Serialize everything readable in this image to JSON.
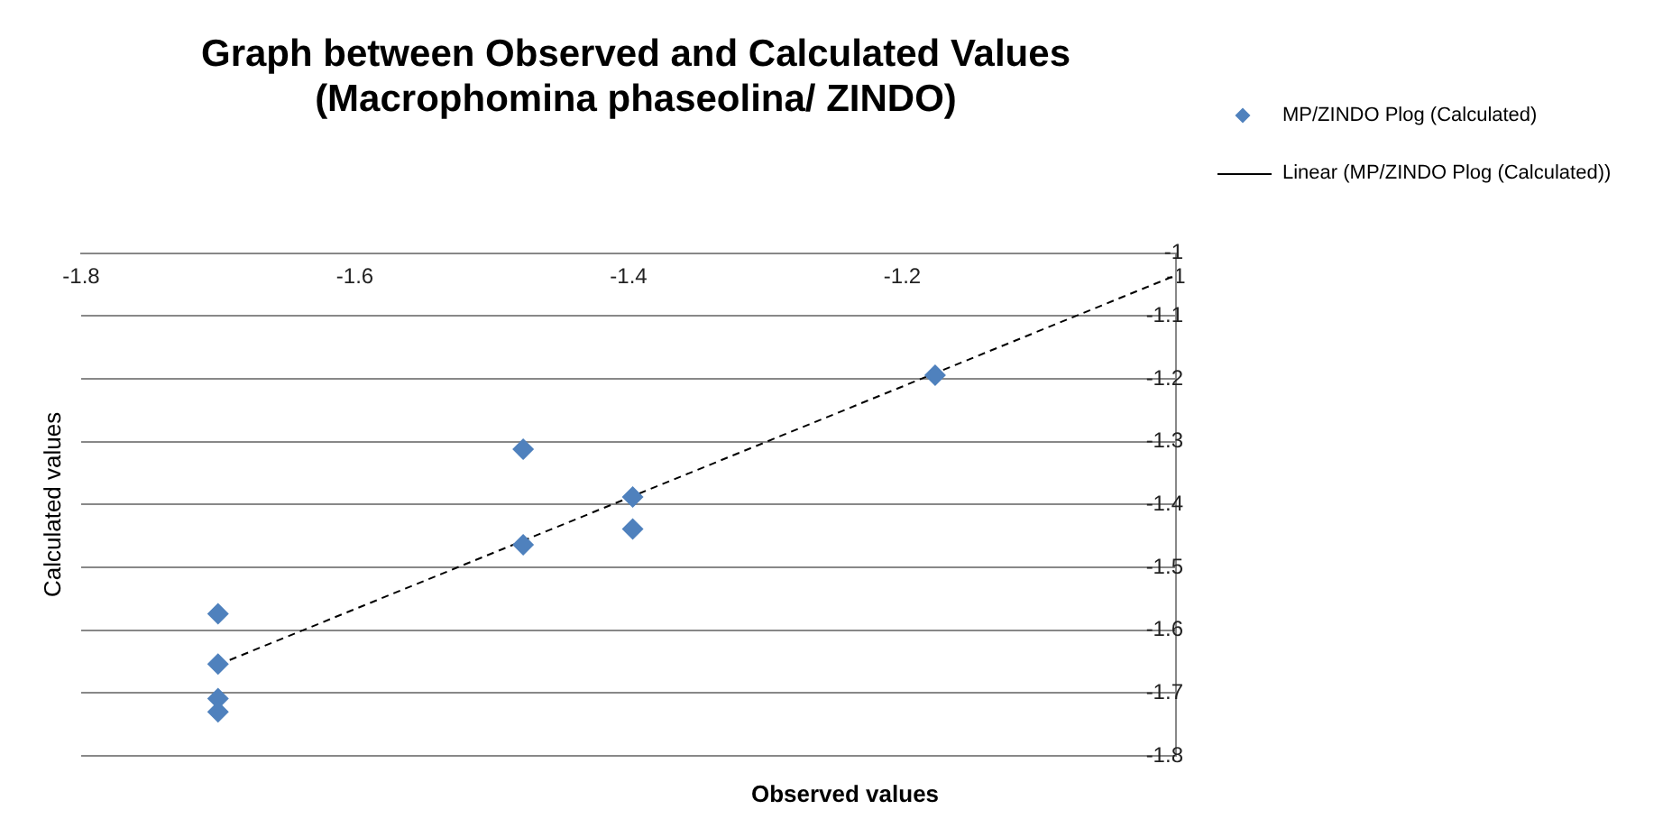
{
  "chart_data": {
    "type": "scatter",
    "title": "Graph between Observed and Calculated Values\n(Macrophomina phaseolina/ ZINDO)",
    "xlabel": "Observed values",
    "ylabel": "Calculated values",
    "xlim": [
      -1.8,
      -1
    ],
    "xticks": [
      -1.8,
      -1.6,
      -1.4,
      -1.2,
      -1
    ],
    "ylim": [
      -1.8,
      -1
    ],
    "yticks": [
      -1.8,
      -1.7,
      -1.6,
      -1.5,
      -1.4,
      -1.3,
      -1.2,
      -1.1,
      -1
    ],
    "grid": "y",
    "legend": "right",
    "marker": "diamond",
    "series": [
      {
        "name": "MP/ZINDO Plog (Calculated)",
        "color": "#4f81bd",
        "x": [
          -1.7,
          -1.7,
          -1.7,
          -1.7,
          -1.477,
          -1.477,
          -1.397,
          -1.397,
          -1.176
        ],
        "values": [
          -1.574,
          -1.654,
          -1.709,
          -1.73,
          -1.312,
          -1.464,
          -1.388,
          -1.439,
          -1.194
        ]
      },
      {
        "name": "Linear (MP/ZINDO Plog (Calculated))",
        "type": "line",
        "color": "#000000",
        "line_style": "dashed",
        "marker": "none",
        "x": [
          -1.7,
          -1.0
        ],
        "values": [
          -1.655,
          -1.035
        ]
      }
    ]
  }
}
